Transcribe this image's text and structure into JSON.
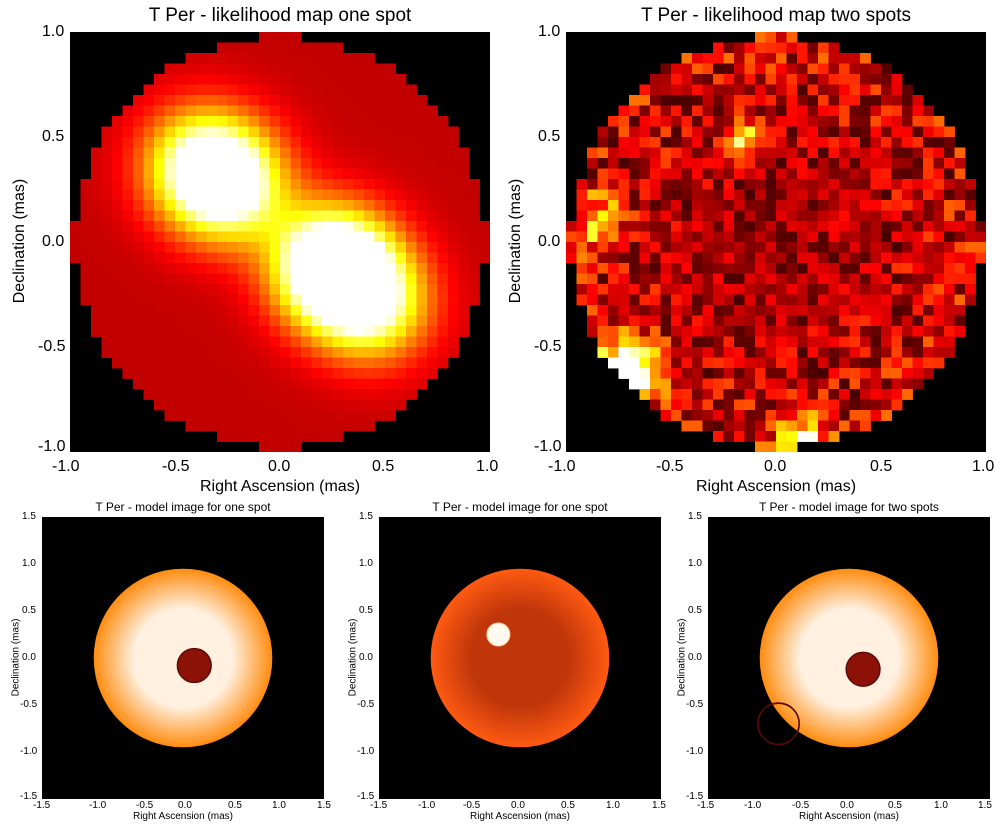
{
  "colors": {
    "background": "#ffffff",
    "plot_bg": "#000000"
  },
  "chart_data": [
    {
      "type": "heatmap",
      "title": "T Per - likelihood map one spot",
      "xlabel": "Right Ascension (mas)",
      "ylabel": "Declination (mas)",
      "xlim": [
        -1.0,
        1.0
      ],
      "ylim": [
        -1.0,
        1.0
      ],
      "xticks": [
        "-1.0",
        "-0.5",
        "0.0",
        "0.5",
        "1.0"
      ],
      "yticks": [
        "1.0",
        "0.5",
        "0.0",
        "-0.5",
        "-1.0"
      ],
      "colormap": "hot",
      "grid_cells": 40,
      "disk_radius_mas": 0.98,
      "base_level": 0.32,
      "features": [
        {
          "x": 0.25,
          "y": -0.12,
          "intensity": 1.0,
          "spread": 0.2
        },
        {
          "x": 0.45,
          "y": -0.3,
          "intensity": 0.55,
          "spread": 0.2
        },
        {
          "x": -0.25,
          "y": 0.28,
          "intensity": 0.72,
          "spread": 0.2
        },
        {
          "x": -0.4,
          "y": 0.38,
          "intensity": 0.45,
          "spread": 0.2
        }
      ],
      "grid": false
    },
    {
      "type": "heatmap",
      "title": "T Per - likelihood map two spots",
      "xlabel": "Right Ascension (mas)",
      "ylabel": "Declination (mas)",
      "xlim": [
        -1.0,
        1.0
      ],
      "ylim": [
        -1.0,
        1.0
      ],
      "xticks": [
        "-1.0",
        "-0.5",
        "0.0",
        "0.5",
        "1.0"
      ],
      "yticks": [
        "1.0",
        "0.5",
        "0.0",
        "-0.5",
        "-1.0"
      ],
      "colormap": "hot",
      "grid_cells": 40,
      "disk_radius_mas": 0.98,
      "base_level": 0.12,
      "noise_level": 0.4,
      "features": [
        {
          "x": -0.7,
          "y": -0.62,
          "intensity": 0.95,
          "spread": 0.1
        },
        {
          "x": 0.12,
          "y": -0.95,
          "intensity": 0.7,
          "spread": 0.08
        },
        {
          "x": -0.15,
          "y": 0.5,
          "intensity": 0.55,
          "spread": 0.06
        },
        {
          "x": -0.85,
          "y": 0.1,
          "intensity": 0.45,
          "spread": 0.08
        }
      ],
      "grid": false
    },
    {
      "type": "heatmap",
      "title": "T Per - model image for one spot",
      "xlabel": "Right Ascension (mas)",
      "ylabel": "Declination (mas)",
      "xlim": [
        -1.5,
        1.5
      ],
      "ylim": [
        -1.5,
        1.5
      ],
      "xticks": [
        "-1.5",
        "-1.0",
        "-0.5",
        "0.0",
        "0.5",
        "1.0",
        "1.5"
      ],
      "yticks": [
        "1.5",
        "1.0",
        "0.5",
        "0.0",
        "-0.5",
        "-1.0",
        "-1.5"
      ],
      "colormap": "hot",
      "star": {
        "x": 0.0,
        "y": 0.0,
        "radius_mas": 0.95,
        "center_color": "#fff0e0",
        "edge_color": "#ff8c10"
      },
      "spots": [
        {
          "x": 0.12,
          "y": -0.08,
          "radius_mas": 0.18,
          "color": "#8c1208"
        }
      ],
      "grid": false
    },
    {
      "type": "heatmap",
      "title": "T Per - model image for one spot",
      "xlabel": "Right Ascension (mas)",
      "ylabel": "Declination (mas)",
      "xlim": [
        -1.5,
        1.5
      ],
      "ylim": [
        -1.5,
        1.5
      ],
      "xticks": [
        "-1.5",
        "-1.0",
        "-0.5",
        "0.0",
        "0.5",
        "1.0",
        "1.5"
      ],
      "yticks": [
        "1.5",
        "1.0",
        "0.5",
        "0.0",
        "-0.5",
        "-1.0",
        "-1.5"
      ],
      "colormap": "hot",
      "star": {
        "x": 0.0,
        "y": 0.0,
        "radius_mas": 0.95,
        "center_color": "#c0360a",
        "edge_color": "#ff5a12"
      },
      "spots": [
        {
          "x": -0.23,
          "y": 0.25,
          "radius_mas": 0.12,
          "color": "#fffaf0"
        }
      ],
      "grid": false
    },
    {
      "type": "heatmap",
      "title": "T Per - model image for two spots",
      "xlabel": "Right Ascension (mas)",
      "ylabel": "Declination (mas)",
      "xlim": [
        -1.5,
        1.5
      ],
      "ylim": [
        -1.5,
        1.5
      ],
      "xticks": [
        "-1.5",
        "-1.0",
        "-0.5",
        "0.0",
        "0.5",
        "1.0",
        "1.5"
      ],
      "yticks": [
        "1.5",
        "1.0",
        "0.5",
        "0.0",
        "-0.5",
        "-1.0",
        "-1.5"
      ],
      "colormap": "hot",
      "star": {
        "x": 0.0,
        "y": 0.0,
        "radius_mas": 0.95,
        "center_color": "#fff0e0",
        "edge_color": "#ff8c10"
      },
      "spots": [
        {
          "x": 0.15,
          "y": -0.12,
          "radius_mas": 0.18,
          "color": "#8c1208"
        },
        {
          "x": -0.75,
          "y": -0.7,
          "radius_mas": 0.22,
          "color": "none"
        }
      ],
      "grid": false
    }
  ]
}
